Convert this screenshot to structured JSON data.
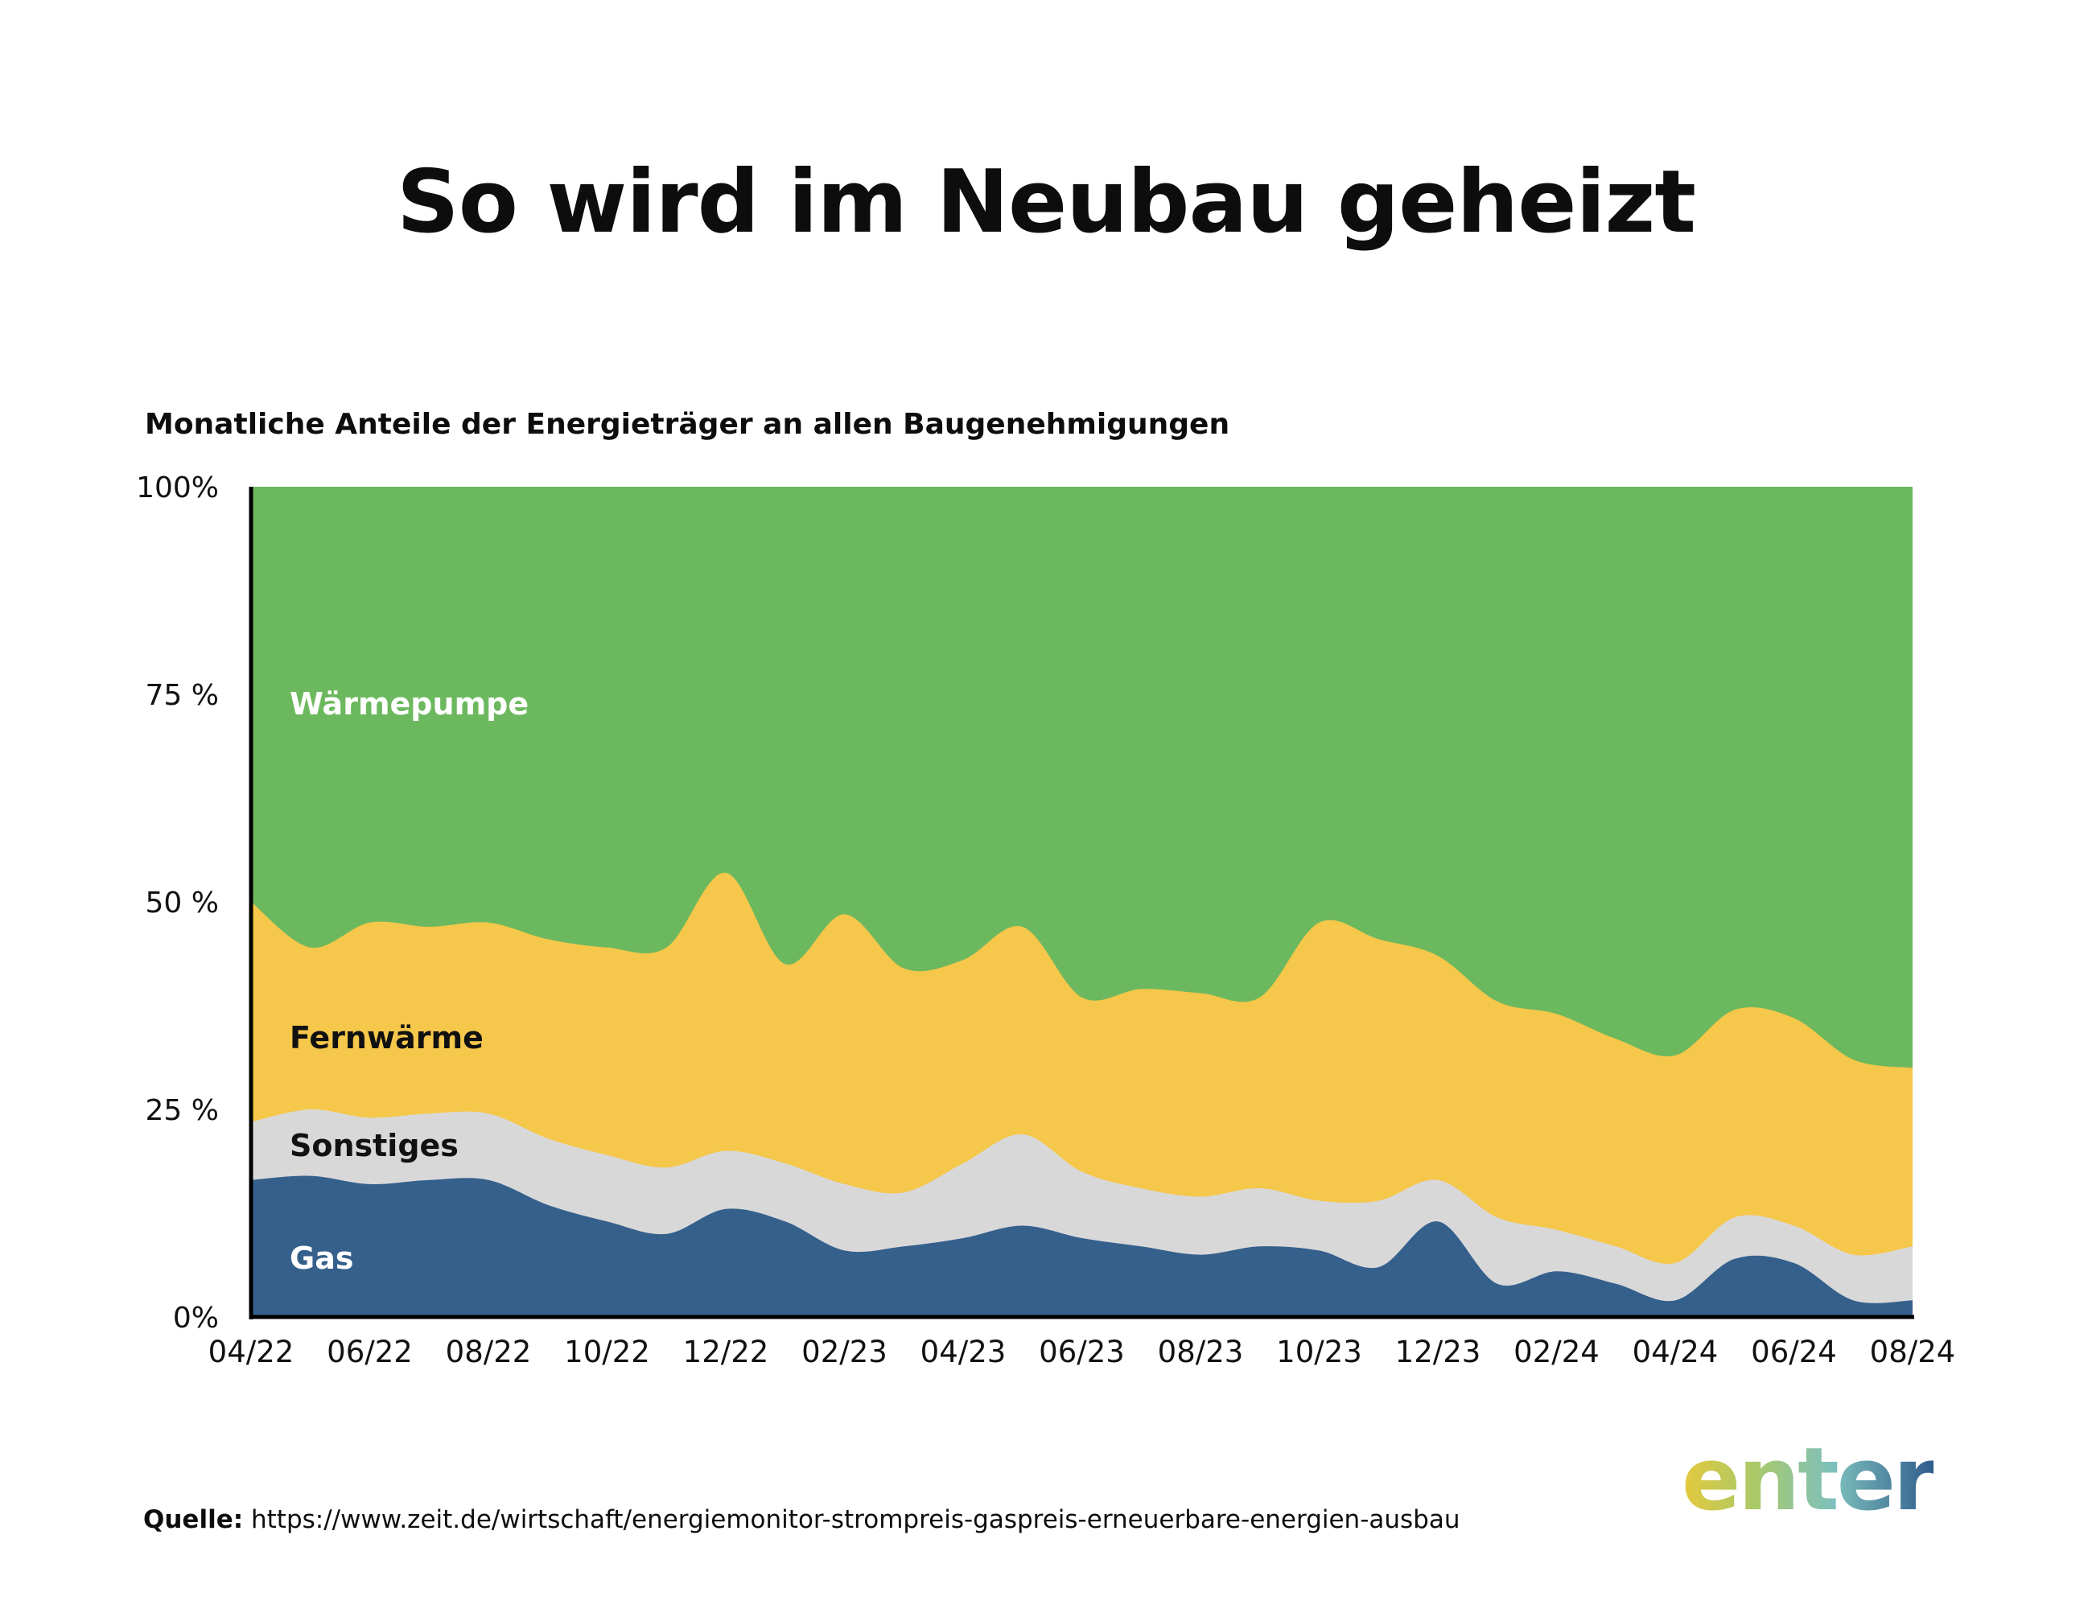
{
  "title": "So wird im Neubau geheizt",
  "subtitle": "Monatliche Anteile der Energieträger an allen Baugenehmigungen",
  "source": {
    "label": "Quelle:",
    "url": "https://www.zeit.de/wirtschaft/energiemonitor-strompreis-gaspreis-erneuerbare-energien-ausbau"
  },
  "logo": "enter",
  "colors": {
    "Gas": "#35608c",
    "Sonstiges": "#d9d8d9",
    "Fernwärme": "#f5c74a",
    "Wärmepumpe": "#6cb85e",
    "axis": "#000000"
  },
  "chart_data": {
    "type": "area",
    "stacked": true,
    "ylim": [
      0,
      100
    ],
    "y_ticks": [
      "0%",
      "25 %",
      "50 %",
      "75 %",
      "100%"
    ],
    "x_tick_labels": [
      "04/22",
      "06/22",
      "08/22",
      "10/22",
      "12/22",
      "02/23",
      "04/23",
      "06/23",
      "08/23",
      "10/23",
      "12/23",
      "02/24",
      "04/24",
      "06/24",
      "08/24"
    ],
    "x": [
      "04/22",
      "05/22",
      "06/22",
      "07/22",
      "08/22",
      "09/22",
      "10/22",
      "11/22",
      "12/22",
      "01/23",
      "02/23",
      "03/23",
      "04/23",
      "05/23",
      "06/23",
      "07/23",
      "08/23",
      "09/23",
      "10/23",
      "11/23",
      "12/23",
      "01/24",
      "02/24",
      "03/24",
      "04/24",
      "05/24",
      "06/24",
      "07/24",
      "08/24"
    ],
    "series": [
      {
        "name": "Gas",
        "values": [
          16.5,
          17,
          16,
          16.5,
          16.5,
          13.5,
          11.5,
          10,
          13,
          11.5,
          8,
          8.5,
          9.5,
          11,
          9.5,
          8.5,
          7.5,
          8.5,
          8,
          6,
          11.5,
          4,
          5.5,
          4,
          2,
          7,
          6.5,
          2,
          2
        ]
      },
      {
        "name": "Sonstiges",
        "values": [
          7,
          8,
          8,
          8,
          8,
          8,
          8,
          8,
          7,
          7,
          8,
          6.5,
          9,
          11,
          8,
          7,
          7,
          7,
          6,
          8,
          5,
          8,
          5,
          4.5,
          4.5,
          5,
          4.5,
          5.5,
          6.5
        ]
      },
      {
        "name": "Fernwärme",
        "values": [
          26.5,
          19.5,
          23.5,
          22.5,
          23,
          24,
          25,
          26.5,
          33.5,
          24,
          32.5,
          27,
          24.5,
          25,
          21,
          24,
          24.5,
          23,
          33.5,
          31.5,
          27,
          26,
          26,
          25,
          25,
          25,
          25,
          23.5,
          21.5
        ]
      },
      {
        "name": "Wärmepumpe",
        "values": [
          50,
          55.5,
          52.5,
          53,
          52.5,
          54.5,
          55.5,
          55.5,
          46.5,
          57.5,
          51.5,
          58,
          57,
          53,
          61.5,
          60.5,
          61,
          61.5,
          52.5,
          54.5,
          56.5,
          62,
          63.5,
          66.5,
          68.5,
          63,
          64,
          69,
          70
        ]
      }
    ]
  }
}
